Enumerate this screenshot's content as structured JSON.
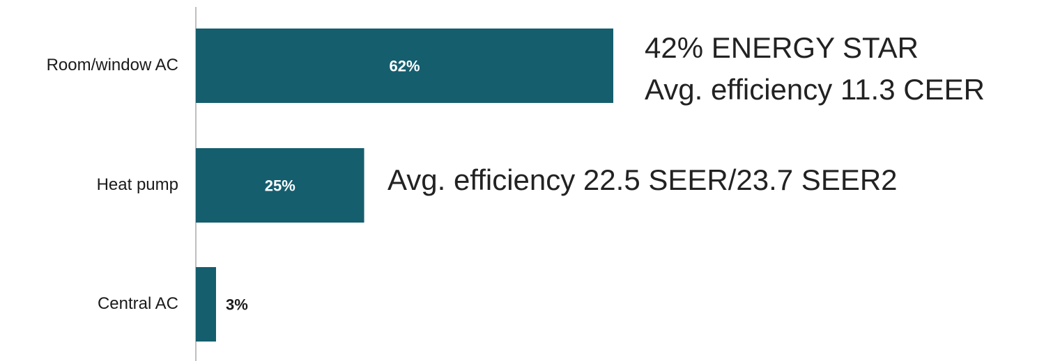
{
  "chart_data": {
    "type": "bar",
    "orientation": "horizontal",
    "categories": [
      "Room/window AC",
      "Heat pump",
      "Central AC"
    ],
    "values": [
      62,
      25,
      3
    ],
    "value_labels": [
      "62%",
      "25%",
      "3%"
    ],
    "xlim": [
      0,
      100
    ],
    "grid": false,
    "annotations": [
      {
        "category": "Room/window AC",
        "lines": [
          "42% ENERGY STAR",
          "Avg. efficiency 11.3 CEER"
        ]
      },
      {
        "category": "Heat pump",
        "lines": [
          "Avg. efficiency 22.5 SEER/23.7 SEER2"
        ]
      }
    ]
  },
  "colors": {
    "bar": "#155e6e",
    "label_inside": "#ffffff",
    "label_outside": "#1a1a1a",
    "axis": "#bfbfbf"
  }
}
